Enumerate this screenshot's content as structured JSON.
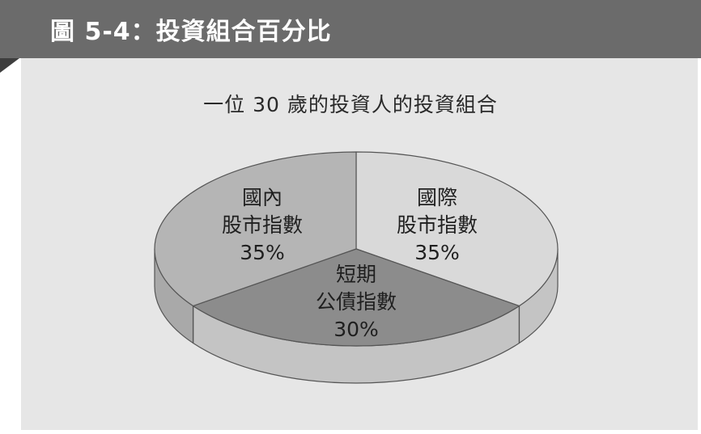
{
  "figure": {
    "label": "圖 5-4：投資組合百分比"
  },
  "chart_data": {
    "type": "pie",
    "title": "一位 30 歲的投資人的投資組合",
    "style": "3d",
    "slices": [
      {
        "label_lines": [
          "國際",
          "股市指數"
        ],
        "value": 35,
        "value_label": "35%",
        "color": "#d9d9d9",
        "side_color": "#c4c4c4"
      },
      {
        "label_lines": [
          "短期",
          "公債指數"
        ],
        "value": 30,
        "value_label": "30%",
        "color": "#8c8c8c",
        "side_color": "#c4c4c4"
      },
      {
        "label_lines": [
          "國內",
          "股市指數"
        ],
        "value": 35,
        "value_label": "35%",
        "color": "#b5b5b5",
        "side_color": "#a9a9a9"
      }
    ]
  }
}
